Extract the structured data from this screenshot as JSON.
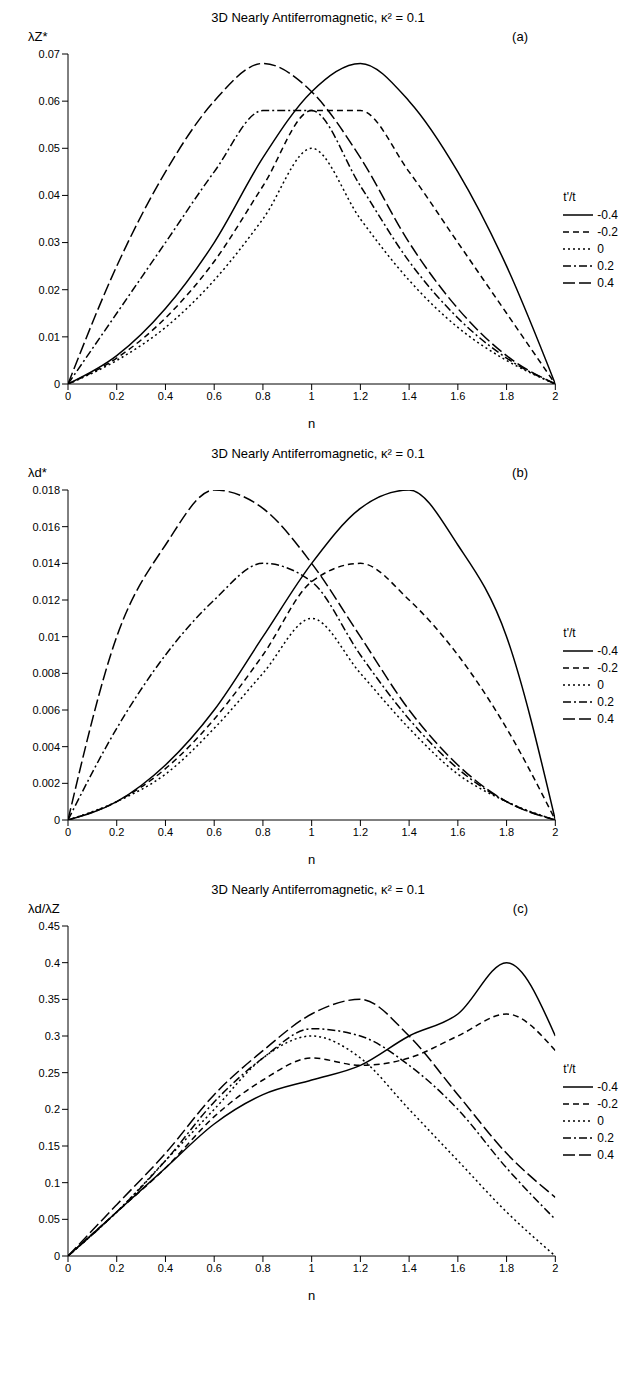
{
  "chart_data": [
    {
      "type": "line",
      "title": "3D Nearly Antiferromagnetic, κ² = 0.1",
      "annotations": [
        "(a)"
      ],
      "x_label": "n",
      "y_label": "λZ*",
      "z_label": "t'/t",
      "legend": "right",
      "grid": false,
      "x": [
        0,
        0.2,
        0.4,
        0.6,
        0.8,
        1,
        1.2,
        1.4,
        1.6,
        1.8,
        2
      ],
      "xlim": [
        0,
        2
      ],
      "xticks": [
        0,
        0.2,
        0.4,
        0.6,
        0.8,
        1,
        1.2,
        1.4,
        1.6,
        1.8,
        2
      ],
      "ylim": [
        0,
        0.07
      ],
      "yticks": [
        0,
        0.01,
        0.02,
        0.03,
        0.04,
        0.05,
        0.06,
        0.07
      ],
      "series": [
        {
          "name": "-0.4",
          "color": "#000000",
          "line_style": "solid",
          "values": [
            0,
            0.006,
            0.016,
            0.03,
            0.048,
            0.062,
            0.068,
            0.06,
            0.045,
            0.025,
            0
          ]
        },
        {
          "name": "-0.2",
          "color": "#000000",
          "line_style": "dashed",
          "values": [
            0,
            0.0055,
            0.014,
            0.026,
            0.042,
            0.058,
            0.058,
            0.045,
            0.03,
            0.015,
            0
          ]
        },
        {
          "name": "0",
          "color": "#000000",
          "line_style": "dotted",
          "values": [
            0,
            0.005,
            0.012,
            0.022,
            0.035,
            0.05,
            0.035,
            0.022,
            0.012,
            0.005,
            0
          ]
        },
        {
          "name": "0.2",
          "color": "#000000",
          "line_style": "dashdot",
          "values": [
            0,
            0.015,
            0.03,
            0.045,
            0.058,
            0.058,
            0.042,
            0.026,
            0.014,
            0.0055,
            0
          ]
        },
        {
          "name": "0.4",
          "color": "#000000",
          "line_style": "longdash",
          "values": [
            0,
            0.025,
            0.045,
            0.06,
            0.068,
            0.062,
            0.048,
            0.03,
            0.016,
            0.006,
            0
          ]
        }
      ]
    },
    {
      "type": "line",
      "title": "3D Nearly Antiferromagnetic, κ² = 0.1",
      "annotations": [
        "(b)"
      ],
      "x_label": "n",
      "y_label": "λd*",
      "z_label": "t'/t",
      "legend": "right",
      "grid": false,
      "x": [
        0,
        0.2,
        0.4,
        0.6,
        0.8,
        1,
        1.2,
        1.4,
        1.6,
        1.8,
        2
      ],
      "xlim": [
        0,
        2
      ],
      "xticks": [
        0,
        0.2,
        0.4,
        0.6,
        0.8,
        1,
        1.2,
        1.4,
        1.6,
        1.8,
        2
      ],
      "ylim": [
        0,
        0.018
      ],
      "yticks": [
        0,
        0.002,
        0.004,
        0.006,
        0.008,
        0.01,
        0.012,
        0.014,
        0.016,
        0.018
      ],
      "series": [
        {
          "name": "-0.4",
          "color": "#000000",
          "line_style": "solid",
          "values": [
            0,
            0.001,
            0.003,
            0.006,
            0.01,
            0.014,
            0.017,
            0.018,
            0.015,
            0.01,
            0
          ]
        },
        {
          "name": "-0.2",
          "color": "#000000",
          "line_style": "dashed",
          "values": [
            0,
            0.001,
            0.0028,
            0.0055,
            0.009,
            0.013,
            0.014,
            0.012,
            0.009,
            0.005,
            0
          ]
        },
        {
          "name": "0",
          "color": "#000000",
          "line_style": "dotted",
          "values": [
            0,
            0.001,
            0.0025,
            0.005,
            0.008,
            0.011,
            0.008,
            0.005,
            0.0025,
            0.001,
            0
          ]
        },
        {
          "name": "0.2",
          "color": "#000000",
          "line_style": "dashdot",
          "values": [
            0,
            0.005,
            0.009,
            0.012,
            0.014,
            0.013,
            0.009,
            0.0055,
            0.0028,
            0.001,
            0
          ]
        },
        {
          "name": "0.4",
          "color": "#000000",
          "line_style": "longdash",
          "values": [
            0,
            0.01,
            0.015,
            0.018,
            0.017,
            0.014,
            0.01,
            0.006,
            0.003,
            0.001,
            0
          ]
        }
      ]
    },
    {
      "type": "line",
      "title": "3D Nearly Antiferromagnetic, κ² = 0.1",
      "annotations": [
        "(c)"
      ],
      "x_label": "n",
      "y_label": "λd/λZ",
      "z_label": "t'/t",
      "legend": "right",
      "grid": false,
      "x": [
        0,
        0.2,
        0.4,
        0.6,
        0.8,
        1,
        1.2,
        1.4,
        1.6,
        1.8,
        2
      ],
      "xlim": [
        0,
        2
      ],
      "xticks": [
        0,
        0.2,
        0.4,
        0.6,
        0.8,
        1,
        1.2,
        1.4,
        1.6,
        1.8,
        2
      ],
      "ylim": [
        0,
        0.45
      ],
      "yticks": [
        0,
        0.05,
        0.1,
        0.15,
        0.2,
        0.25,
        0.3,
        0.35,
        0.4,
        0.45
      ],
      "series": [
        {
          "name": "-0.4",
          "color": "#000000",
          "line_style": "solid",
          "values": [
            0,
            0.06,
            0.12,
            0.18,
            0.22,
            0.24,
            0.26,
            0.3,
            0.33,
            0.4,
            0.3
          ]
        },
        {
          "name": "-0.2",
          "color": "#000000",
          "line_style": "dashed",
          "values": [
            0,
            0.06,
            0.12,
            0.19,
            0.24,
            0.27,
            0.26,
            0.27,
            0.3,
            0.33,
            0.28
          ]
        },
        {
          "name": "0",
          "color": "#000000",
          "line_style": "dotted",
          "values": [
            0,
            0.06,
            0.13,
            0.2,
            0.27,
            0.3,
            0.27,
            0.2,
            0.13,
            0.06,
            0
          ]
        },
        {
          "name": "0.2",
          "color": "#000000",
          "line_style": "dashdot",
          "values": [
            0,
            0.06,
            0.13,
            0.21,
            0.27,
            0.31,
            0.3,
            0.26,
            0.2,
            0.12,
            0.05
          ]
        },
        {
          "name": "0.4",
          "color": "#000000",
          "line_style": "longdash",
          "values": [
            0,
            0.07,
            0.14,
            0.22,
            0.28,
            0.33,
            0.35,
            0.3,
            0.22,
            0.14,
            0.08
          ]
        }
      ]
    }
  ]
}
